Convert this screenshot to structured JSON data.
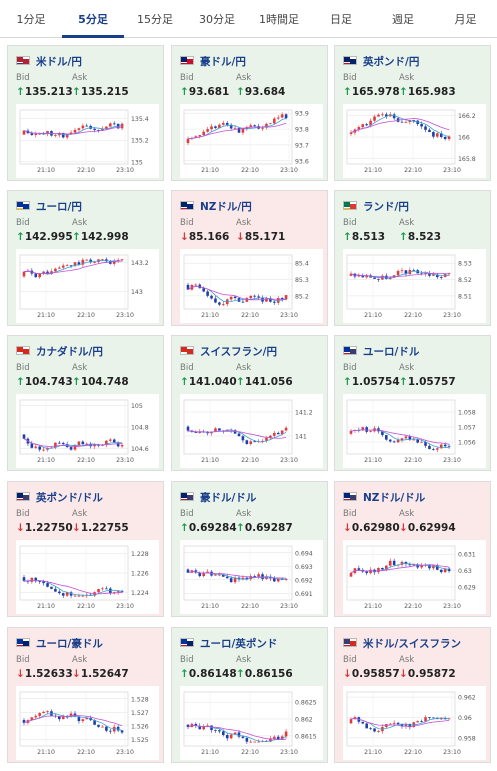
{
  "tabs": [
    {
      "label": "1分足",
      "active": false
    },
    {
      "label": "5分足",
      "active": true
    },
    {
      "label": "15分足",
      "active": false
    },
    {
      "label": "30分足",
      "active": false
    },
    {
      "label": "1時間足",
      "active": false
    },
    {
      "label": "日足",
      "active": false
    },
    {
      "label": "週足",
      "active": false
    },
    {
      "label": "月足",
      "active": false
    }
  ],
  "labels": {
    "bid": "Bid",
    "ask": "Ask"
  },
  "colors": {
    "up_bg": "#e9f3ea",
    "down_bg": "#fbe9e9",
    "candle_up": "#e23b3b",
    "candle_down": "#1f3fa8",
    "ma_short": "#3aa0d6",
    "ma_long": "#c54fd6",
    "arrow_up": "#1a9a4a",
    "arrow_down": "#d23a3a"
  },
  "cards": [
    {
      "pair": "米ドル/円",
      "direction": "up",
      "bid": "135.213",
      "ask": "135.215",
      "chart_data": {
        "type": "candlestick",
        "x_ticks": [
          "21:10",
          "22:10",
          "23:10"
        ],
        "y_ticks": [
          "135.4",
          "135.2",
          "135"
        ],
        "ylim": [
          134.98,
          135.48
        ],
        "seed": 11
      }
    },
    {
      "pair": "豪ドル/円",
      "direction": "up",
      "bid": "93.681",
      "ask": "93.684",
      "chart_data": {
        "type": "candlestick",
        "x_ticks": [
          "21:10",
          "22:10",
          "23:10"
        ],
        "y_ticks": [
          "93.9",
          "93.8",
          "93.7",
          "93.6"
        ],
        "ylim": [
          93.58,
          93.92
        ],
        "seed": 23
      }
    },
    {
      "pair": "英ポンド/円",
      "direction": "up",
      "bid": "165.978",
      "ask": "165.983",
      "chart_data": {
        "type": "candlestick",
        "x_ticks": [
          "21:10",
          "22:10",
          "23:10"
        ],
        "y_ticks": [
          "166.2",
          "166",
          "165.8"
        ],
        "ylim": [
          165.75,
          166.25
        ],
        "seed": 37
      }
    },
    {
      "pair": "ユーロ/円",
      "direction": "up",
      "bid": "142.995",
      "ask": "142.998",
      "chart_data": {
        "type": "candlestick",
        "x_ticks": [
          "21:10",
          "22:10",
          "23:10"
        ],
        "y_ticks": [
          "143.2",
          "143"
        ],
        "ylim": [
          142.88,
          143.25
        ],
        "seed": 41
      }
    },
    {
      "pair": "NZドル/円",
      "direction": "down",
      "bid": "85.166",
      "ask": "85.171",
      "chart_data": {
        "type": "candlestick",
        "x_ticks": [
          "21:10",
          "22:10",
          "23:10"
        ],
        "y_ticks": [
          "85.4",
          "85.3",
          "85.2"
        ],
        "ylim": [
          85.12,
          85.45
        ],
        "seed": 53
      }
    },
    {
      "pair": "ランド/円",
      "direction": "up",
      "bid": "8.513",
      "ask": "8.523",
      "chart_data": {
        "type": "candlestick",
        "x_ticks": [
          "21:10",
          "22:10",
          "23:10"
        ],
        "y_ticks": [
          "8.53",
          "8.52",
          "8.51"
        ],
        "ylim": [
          8.502,
          8.535
        ],
        "seed": 67
      }
    },
    {
      "pair": "カナダドル/円",
      "direction": "up",
      "bid": "104.743",
      "ask": "104.748",
      "chart_data": {
        "type": "candlestick",
        "x_ticks": [
          "21:10",
          "22:10",
          "23:10"
        ],
        "y_ticks": [
          "105",
          "104.8",
          "104.6"
        ],
        "ylim": [
          104.55,
          105.05
        ],
        "seed": 71
      }
    },
    {
      "pair": "スイスフラン/円",
      "direction": "up",
      "bid": "141.040",
      "ask": "141.056",
      "chart_data": {
        "type": "candlestick",
        "x_ticks": [
          "21:10",
          "22:10",
          "23:10"
        ],
        "y_ticks": [
          "141.2",
          "141"
        ],
        "ylim": [
          140.85,
          141.3
        ],
        "seed": 83
      }
    },
    {
      "pair": "ユーロ/ドル",
      "direction": "up",
      "bid": "1.05754",
      "ask": "1.05757",
      "chart_data": {
        "type": "candlestick",
        "x_ticks": [
          "21:10",
          "22:10",
          "23:10"
        ],
        "y_ticks": [
          "1.058",
          "1.057",
          "1.056"
        ],
        "ylim": [
          1.0552,
          1.0588
        ],
        "seed": 97
      }
    },
    {
      "pair": "英ポンド/ドル",
      "direction": "down",
      "bid": "1.22750",
      "ask": "1.22755",
      "chart_data": {
        "type": "candlestick",
        "x_ticks": [
          "21:10",
          "22:10",
          "23:10"
        ],
        "y_ticks": [
          "1.228",
          "1.226",
          "1.224"
        ],
        "ylim": [
          1.2232,
          1.2288
        ],
        "seed": 101
      }
    },
    {
      "pair": "豪ドル/ドル",
      "direction": "up",
      "bid": "0.69284",
      "ask": "0.69287",
      "chart_data": {
        "type": "candlestick",
        "x_ticks": [
          "21:10",
          "22:10",
          "23:10"
        ],
        "y_ticks": [
          "0.694",
          "0.693",
          "0.692",
          "0.691"
        ],
        "ylim": [
          0.6905,
          0.6945
        ],
        "seed": 113
      }
    },
    {
      "pair": "NZドル/ドル",
      "direction": "down",
      "bid": "0.62980",
      "ask": "0.62994",
      "chart_data": {
        "type": "candlestick",
        "x_ticks": [
          "21:10",
          "22:10",
          "23:10"
        ],
        "y_ticks": [
          "0.631",
          "0.63",
          "0.629"
        ],
        "ylim": [
          0.6282,
          0.6315
        ],
        "seed": 127
      }
    },
    {
      "pair": "ユーロ/豪ドル",
      "direction": "down",
      "bid": "1.52633",
      "ask": "1.52647",
      "chart_data": {
        "type": "candlestick",
        "x_ticks": [
          "21:10",
          "22:10",
          "23:10"
        ],
        "y_ticks": [
          "1.528",
          "1.527",
          "1.526",
          "1.525"
        ],
        "ylim": [
          1.5245,
          1.5285
        ],
        "seed": 131
      }
    },
    {
      "pair": "ユーロ/英ポンド",
      "direction": "up",
      "bid": "0.86148",
      "ask": "0.86156",
      "chart_data": {
        "type": "candlestick",
        "x_ticks": [
          "21:10",
          "22:10",
          "23:10"
        ],
        "y_ticks": [
          "0.8625",
          "0.862",
          "0.8615"
        ],
        "ylim": [
          0.8612,
          0.8628
        ],
        "seed": 149
      }
    },
    {
      "pair": "米ドル/スイスフラン",
      "direction": "down",
      "bid": "0.95857",
      "ask": "0.95872",
      "chart_data": {
        "type": "candlestick",
        "x_ticks": [
          "21:10",
          "22:10",
          "23:10"
        ],
        "y_ticks": [
          "0.962",
          "0.96",
          "0.958"
        ],
        "ylim": [
          0.9572,
          0.9625
        ],
        "seed": 151
      }
    }
  ]
}
